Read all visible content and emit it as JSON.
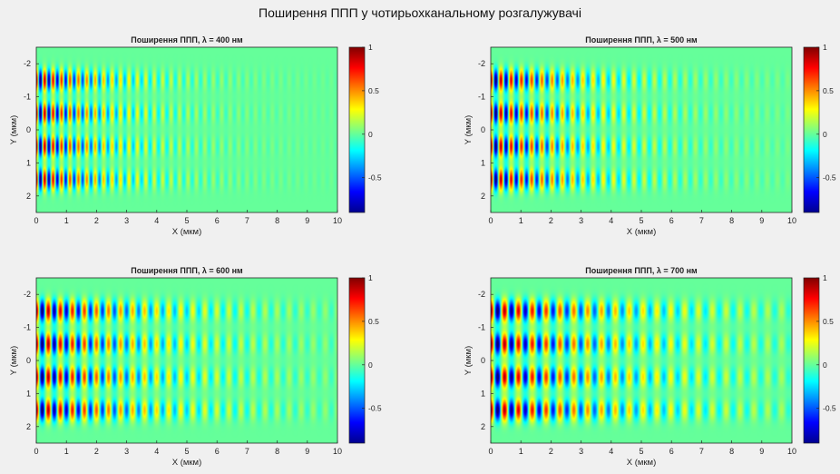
{
  "figure": {
    "title": "Поширення ППП у чотирьохканальному розгалужувачі"
  },
  "chart_data": [
    {
      "type": "heatmap",
      "title": "Поширення ППП, λ = 400 нм",
      "xlabel": "X (мкм)",
      "ylabel": "Y (мкм)",
      "xlim": [
        0,
        10
      ],
      "ylim": [
        -2.5,
        2.5
      ],
      "y_reversed": true,
      "xticks": [
        "0",
        "1",
        "2",
        "3",
        "4",
        "5",
        "6",
        "7",
        "8",
        "9",
        "10"
      ],
      "yticks": [
        "-2",
        "-1",
        "0",
        "1",
        "2"
      ],
      "colorbar": {
        "ticks": [
          "-0.5",
          "0",
          "0.5",
          "1"
        ],
        "range": [
          -0.9,
          1
        ],
        "colormap": "jet"
      },
      "field": {
        "channels_y": [
          -1.5,
          -0.5,
          0.5,
          1.5
        ],
        "channel_width": 0.32,
        "wavelength_um": 0.4,
        "period_x_um": 0.28,
        "decay_length_um": 2.6
      }
    },
    {
      "type": "heatmap",
      "title": "Поширення ППП, λ = 500 нм",
      "xlabel": "X (мкм)",
      "ylabel": "Y (мкм)",
      "xlim": [
        0,
        10
      ],
      "ylim": [
        -2.5,
        2.5
      ],
      "y_reversed": true,
      "xticks": [
        "0",
        "1",
        "2",
        "3",
        "4",
        "5",
        "6",
        "7",
        "8",
        "9",
        "10"
      ],
      "yticks": [
        "-2",
        "-1",
        "0",
        "1",
        "2"
      ],
      "colorbar": {
        "ticks": [
          "-0.5",
          "0",
          "0.5",
          "1"
        ],
        "range": [
          -0.9,
          1
        ],
        "colormap": "jet"
      },
      "field": {
        "channels_y": [
          -1.5,
          -0.5,
          0.5,
          1.5
        ],
        "channel_width": 0.32,
        "wavelength_um": 0.5,
        "period_x_um": 0.34,
        "decay_length_um": 3.2
      }
    },
    {
      "type": "heatmap",
      "title": "Поширення ППП, λ = 600 нм",
      "xlabel": "X (мкм)",
      "ylabel": "Y (мкм)",
      "xlim": [
        0,
        10
      ],
      "ylim": [
        -2.5,
        2.5
      ],
      "y_reversed": true,
      "xticks": [
        "0",
        "1",
        "2",
        "3",
        "4",
        "5",
        "6",
        "7",
        "8",
        "9",
        "10"
      ],
      "yticks": [
        "-2",
        "-1",
        "0",
        "1",
        "2"
      ],
      "colorbar": {
        "ticks": [
          "-0.5",
          "0",
          "0.5",
          "1"
        ],
        "range": [
          -0.9,
          1
        ],
        "colormap": "jet"
      },
      "field": {
        "channels_y": [
          -1.5,
          -0.5,
          0.5,
          1.5
        ],
        "channel_width": 0.32,
        "wavelength_um": 0.6,
        "period_x_um": 0.4,
        "decay_length_um": 4.0
      }
    },
    {
      "type": "heatmap",
      "title": "Поширення ППП, λ = 700 нм",
      "xlabel": "X (мкм)",
      "ylabel": "Y (мкм)",
      "xlim": [
        0,
        10
      ],
      "ylim": [
        -2.5,
        2.5
      ],
      "y_reversed": true,
      "xticks": [
        "0",
        "1",
        "2",
        "3",
        "4",
        "5",
        "6",
        "7",
        "8",
        "9",
        "10"
      ],
      "yticks": [
        "-2",
        "-1",
        "0",
        "1",
        "2"
      ],
      "colorbar": {
        "ticks": [
          "-0.5",
          "0",
          "0.5",
          "1"
        ],
        "range": [
          -0.9,
          1
        ],
        "colormap": "jet"
      },
      "field": {
        "channels_y": [
          -1.5,
          -0.5,
          0.5,
          1.5
        ],
        "channel_width": 0.32,
        "wavelength_um": 0.7,
        "period_x_um": 0.46,
        "decay_length_um": 4.8
      }
    }
  ]
}
